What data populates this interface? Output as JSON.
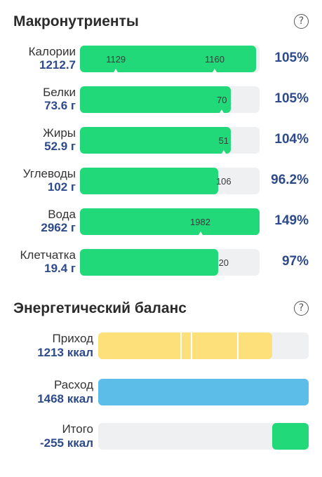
{
  "macros": {
    "title": "Макронутриенты",
    "help_icon": "question-mark-circle",
    "rows": [
      {
        "name": "Калории",
        "value": "1212.7",
        "percent": "105%",
        "fill": 0.98,
        "labels": [
          "1129",
          "1160"
        ],
        "marks": [
          0.2,
          0.75
        ]
      },
      {
        "name": "Белки",
        "value": "73.6 г",
        "percent": "105%",
        "fill": 0.84,
        "labels": [
          "70"
        ],
        "marks": [
          0.79
        ]
      },
      {
        "name": "Жиры",
        "value": "52.9 г",
        "percent": "104%",
        "fill": 0.84,
        "labels": [
          "51"
        ],
        "marks": [
          0.8
        ]
      },
      {
        "name": "Углеводы",
        "value": "102 г",
        "percent": "96.2%",
        "fill": 0.77,
        "labels": [
          "106"
        ],
        "marks": [
          0.8
        ]
      },
      {
        "name": "Вода",
        "value": "2962 г",
        "percent": "149%",
        "fill": 1.0,
        "labels": [
          "1982"
        ],
        "marks": [
          0.67
        ]
      },
      {
        "name": "Клетчатка",
        "value": "19.4 г",
        "percent": "97%",
        "fill": 0.77,
        "labels": [
          "20"
        ],
        "marks": [
          0.8
        ]
      }
    ]
  },
  "energy": {
    "title": "Энергетический баланс",
    "help_icon": "question-mark-circle",
    "rows": [
      {
        "name": "Приход",
        "value": "1213 ккал",
        "color": "#fde07a",
        "fill_from": 0,
        "fill_to": 0.826,
        "dividers": [
          0.39,
          0.44,
          0.66
        ]
      },
      {
        "name": "Расход",
        "value": "1468 ккал",
        "color": "#5bbde8",
        "fill_from": 0,
        "fill_to": 1.0,
        "dividers": []
      },
      {
        "name": "Итого",
        "value": "-255 ккал",
        "color": "#22d97a",
        "fill_from": 0.826,
        "fill_to": 1.0,
        "dividers": []
      }
    ]
  }
}
